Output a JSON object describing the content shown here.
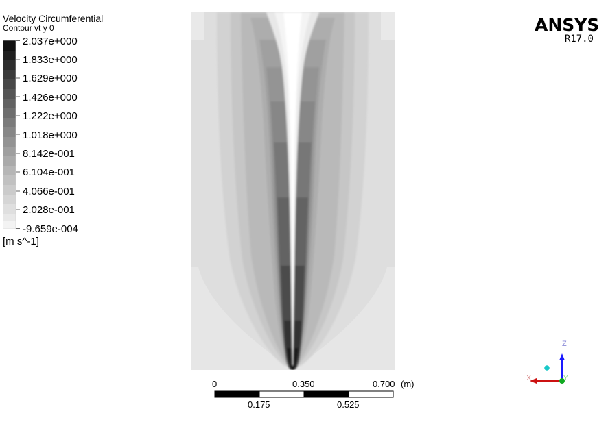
{
  "legend": {
    "title": "Velocity Circumferential",
    "subtitle": "Contour vt y 0",
    "levels": [
      "2.037e+000",
      "1.833e+000",
      "1.629e+000",
      "1.426e+000",
      "1.222e+000",
      "1.018e+000",
      "8.142e-001",
      "6.104e-001",
      "4.066e-001",
      "2.028e-001",
      "-9.659e-004"
    ],
    "unit": "[m s^-1]"
  },
  "logo": {
    "name": "ANSYS",
    "version": "R17.0"
  },
  "scale": {
    "top_labels": [
      "0",
      "0.350",
      "0.700"
    ],
    "unit": "(m)",
    "bottom_labels": [
      "0.175",
      "0.525"
    ]
  },
  "triad": {
    "z_label": "Z",
    "x_label": "X",
    "y_label": "Y",
    "colors": {
      "z": "#1a1aff",
      "x": "#cc1111",
      "y": "#11aa22",
      "ball": "#19c8c8"
    }
  }
}
